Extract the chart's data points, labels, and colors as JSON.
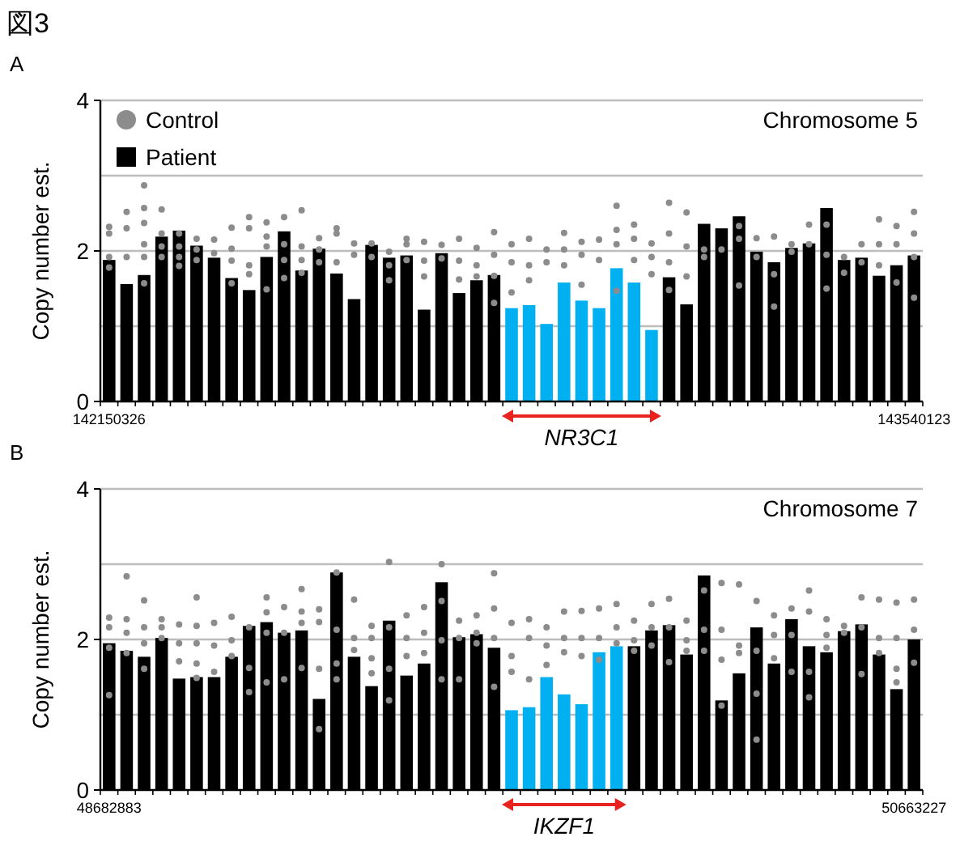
{
  "chart_data": [
    {
      "type": "bar",
      "title": "図3",
      "subtitle": "A",
      "ylabel": "Copy number est.",
      "annotations": [
        "Chromosome 5",
        "NR3C1"
      ],
      "categories": [
        "142150326",
        null,
        null,
        null,
        null,
        null,
        null,
        null,
        null,
        null,
        null,
        null,
        null,
        null,
        null,
        null,
        null,
        null,
        null,
        null,
        null,
        null,
        null,
        null,
        null,
        null,
        null,
        null,
        null,
        null,
        null,
        null,
        null,
        null,
        null,
        null,
        null,
        null,
        null,
        null,
        null,
        null,
        null,
        null,
        null,
        null,
        "143540123"
      ],
      "ylim": [
        0,
        4
      ],
      "yticks": [
        0,
        2,
        4
      ],
      "grid": "y",
      "legend": "top left",
      "series": [
        {
          "name": "Control",
          "type": "scatter",
          "color": "#8c8c8c",
          "marker": "circle",
          "values": [
            2.32,
            2.52,
            2.87,
            2.55,
            2.23,
            2.16,
            2.15,
            2.31,
            2.45,
            2.38,
            2.45,
            2.54,
            2.17,
            2.3,
            2.1,
            2.1,
            1.99,
            2.16,
            2.12,
            2.08,
            2.16,
            2.04,
            2.25,
            2.09,
            2.16,
            2.02,
            2.24,
            2.12,
            2.15,
            2.6,
            2.35,
            2.1,
            2.64,
            2.51,
            2.02,
            2.02,
            2.33,
            2.17,
            2.19,
            2.09,
            2.35,
            2.35,
            1.92,
            2.09,
            2.42,
            2.33,
            2.52
          ]
        },
        {
          "type": "scatter",
          "color": "#8c8c8c",
          "marker": "circle",
          "values": [
            2.23,
            2.3,
            2.57,
            2.23,
            2.06,
            2.02,
            1.97,
            2.03,
            2.3,
            2.19,
            2.09,
            2.06,
            2.02,
            2.23,
            1.95,
            1.92,
            1.81,
            2.09,
            1.87,
            1.9,
            1.87,
            1.81,
            1.95,
            1.85,
            1.81,
            1.85,
            2.02,
            1.95,
            1.88,
            2.28,
            2.16,
            1.92,
            2.23,
            2.06,
            1.92,
            null,
            2.16,
            1.92,
            1.69,
            1.99,
            2.09,
            1.95,
            1.71,
            1.85,
            2.09,
            2.09,
            2.23
          ]
        },
        {
          "type": "scatter",
          "color": "#8c8c8c",
          "marker": "circle",
          "values": [
            1.92,
            1.92,
            2.37,
            2.06,
            1.92,
            1.88,
            null,
            1.87,
            1.81,
            2.06,
            1.88,
            1.88,
            1.85,
            1.85,
            null,
            null,
            1.61,
            1.88,
            1.66,
            null,
            1.62,
            1.66,
            1.67,
            1.45,
            1.61,
            null,
            1.81,
            1.55,
            null,
            2.09,
            1.88,
            1.69,
            1.85,
            1.66,
            null,
            null,
            1.54,
            null,
            1.26,
            null,
            null,
            1.5,
            null,
            null,
            1.81,
            1.58,
            1.92
          ]
        },
        {
          "type": "scatter",
          "color": "#8c8c8c",
          "marker": "circle",
          "values": [
            1.78,
            null,
            2.09,
            1.92,
            1.8,
            null,
            null,
            1.57,
            1.69,
            1.49,
            1.64,
            1.71,
            null,
            null,
            null,
            null,
            null,
            null,
            null,
            null,
            null,
            null,
            1.31,
            null,
            null,
            null,
            null,
            null,
            null,
            1.47,
            null,
            null,
            1.48,
            null,
            null,
            null,
            null,
            null,
            null,
            null,
            null,
            null,
            null,
            null,
            null,
            null,
            1.38
          ]
        },
        {
          "type": "scatter",
          "color": "#8c8c8c",
          "marker": "circle",
          "values": [
            null,
            null,
            1.92,
            null,
            null,
            null,
            null,
            null,
            null,
            null,
            null,
            null,
            null,
            null,
            null,
            null,
            null,
            null,
            null,
            null,
            null,
            null,
            null,
            null,
            null,
            null,
            null,
            null,
            null,
            null,
            null,
            null,
            null,
            null,
            null,
            null,
            null,
            null,
            null,
            null,
            null,
            null,
            null,
            null,
            null,
            null,
            null
          ]
        },
        {
          "type": "scatter",
          "color": "#8c8c8c",
          "marker": "circle",
          "values": [
            null,
            null,
            1.57,
            null,
            null,
            null,
            null,
            null,
            null,
            null,
            null,
            null,
            null,
            null,
            null,
            null,
            null,
            null,
            null,
            null,
            null,
            null,
            null,
            null,
            null,
            null,
            null,
            null,
            null,
            null,
            null,
            null,
            null,
            null,
            null,
            null,
            null,
            null,
            null,
            null,
            null,
            null,
            null,
            null,
            null,
            null,
            null
          ]
        },
        {
          "name": "Patient",
          "type": "bar",
          "color": "#000000",
          "colors": [
            "#000000",
            "#000000",
            "#000000",
            "#000000",
            "#000000",
            "#000000",
            "#000000",
            "#000000",
            "#000000",
            "#000000",
            "#000000",
            "#000000",
            "#000000",
            "#000000",
            "#000000",
            "#000000",
            "#000000",
            "#000000",
            "#000000",
            "#000000",
            "#000000",
            "#000000",
            "#000000",
            "#00b0f0",
            "#00b0f0",
            "#00b0f0",
            "#00b0f0",
            "#00b0f0",
            "#00b0f0",
            "#00b0f0",
            "#00b0f0",
            "#00b0f0",
            "#000000",
            "#000000",
            "#000000",
            "#000000",
            "#000000",
            "#000000",
            "#000000",
            "#000000",
            "#000000",
            "#000000",
            "#000000",
            "#000000",
            "#000000",
            "#000000",
            "#000000"
          ],
          "values": [
            1.88,
            1.56,
            1.68,
            2.19,
            2.27,
            2.07,
            1.91,
            1.64,
            1.48,
            1.92,
            2.26,
            1.74,
            2.03,
            1.7,
            1.36,
            2.08,
            1.91,
            1.94,
            1.22,
            1.97,
            1.44,
            1.61,
            1.68,
            1.24,
            1.28,
            1.03,
            1.58,
            1.34,
            1.24,
            1.77,
            1.58,
            0.95,
            1.65,
            1.29,
            2.36,
            2.3,
            2.46,
            1.99,
            1.85,
            2.04,
            2.1,
            2.57,
            1.88,
            1.91,
            1.67,
            1.81,
            1.94
          ]
        }
      ]
    },
    {
      "type": "bar",
      "subtitle": "B",
      "ylabel": "Copy number est.",
      "annotations": [
        "Chromosome 7",
        "IKZF1"
      ],
      "categories": [
        "48682883",
        null,
        null,
        null,
        null,
        null,
        null,
        null,
        null,
        null,
        null,
        null,
        null,
        null,
        null,
        null,
        null,
        null,
        null,
        null,
        null,
        null,
        null,
        null,
        null,
        null,
        null,
        null,
        null,
        null,
        null,
        null,
        null,
        null,
        null,
        null,
        null,
        null,
        null,
        null,
        null,
        null,
        null,
        null,
        null,
        null,
        "50663227"
      ],
      "ylim": [
        0,
        4
      ],
      "yticks": [
        0,
        2,
        4
      ],
      "grid": "y",
      "series": [
        {
          "type": "scatter",
          "color": "#8c8c8c",
          "marker": "circle",
          "values": [
            2.29,
            2.84,
            2.52,
            2.27,
            2.2,
            2.56,
            2.22,
            2.3,
            2.16,
            2.56,
            2.43,
            2.67,
            2.4,
            2.89,
            2.53,
            2.18,
            3.03,
            2.32,
            2.43,
            3.0,
            2.25,
            2.32,
            2.88,
            2.22,
            2.27,
            2.16,
            2.37,
            2.38,
            2.41,
            2.47,
            2.25,
            2.47,
            2.54,
            2.25,
            2.65,
            2.75,
            2.73,
            2.51,
            2.32,
            2.41,
            2.65,
            2.27,
            2.18,
            2.56,
            2.53,
            2.49,
            2.53
          ]
        },
        {
          "type": "scatter",
          "color": "#8c8c8c",
          "marker": "circle",
          "values": [
            2.16,
            2.27,
            2.16,
            2.16,
            1.95,
            2.18,
            1.92,
            1.99,
            1.62,
            2.36,
            2.09,
            2.37,
            2.23,
            2.13,
            2.02,
            2.02,
            2.16,
            2.02,
            2.09,
            2.51,
            2.02,
            2.09,
            2.41,
            1.78,
            2.02,
            1.92,
            2.02,
            2.02,
            2.02,
            2.16,
            1.99,
            2.16,
            2.16,
            1.99,
            2.13,
            2.13,
            1.92,
            1.85,
            2.06,
            2.06,
            2.37,
            2.06,
            2.09,
            2.16,
            2.02,
            2.02,
            2.13
          ]
        },
        {
          "type": "scatter",
          "color": "#8c8c8c",
          "marker": "circle",
          "values": [
            1.89,
            2.09,
            1.95,
            2.02,
            1.71,
            1.95,
            1.57,
            1.78,
            1.3,
            2.09,
            1.47,
            2.22,
            1.61,
            1.68,
            1.86,
            1.75,
            1.61,
            1.78,
            1.82,
            1.99,
            1.47,
            1.95,
            2.02,
            1.57,
            1.47,
            1.66,
            1.83,
            1.78,
            1.73,
            1.95,
            1.85,
            1.92,
            1.7,
            1.85,
            1.85,
            1.73,
            1.82,
            1.28,
            1.75,
            1.57,
            1.57,
            1.89,
            null,
            1.54,
            1.82,
            1.61,
            1.69
          ]
        },
        {
          "type": "scatter",
          "color": "#8c8c8c",
          "marker": "circle",
          "values": [
            1.26,
            1.82,
            1.61,
            null,
            null,
            1.68,
            null,
            null,
            null,
            1.43,
            null,
            1.62,
            0.81,
            1.47,
            null,
            1.55,
            1.19,
            null,
            null,
            1.47,
            null,
            null,
            1.37,
            null,
            null,
            null,
            null,
            null,
            null,
            null,
            null,
            null,
            null,
            null,
            null,
            1.12,
            null,
            0.67,
            null,
            null,
            1.23,
            null,
            null,
            null,
            null,
            1.43,
            null
          ]
        },
        {
          "type": "scatter",
          "color": "#8c8c8c",
          "marker": "circle",
          "values": [
            null,
            null,
            null,
            null,
            null,
            1.49,
            null,
            null,
            null,
            null,
            null,
            null,
            null,
            null,
            null,
            null,
            null,
            null,
            null,
            null,
            null,
            null,
            null,
            null,
            null,
            null,
            null,
            null,
            null,
            null,
            null,
            null,
            null,
            null,
            null,
            null,
            null,
            null,
            null,
            null,
            null,
            null,
            null,
            null,
            null,
            null,
            null
          ]
        },
        {
          "type": "bar",
          "color": "#000000",
          "colors": [
            "#000000",
            "#000000",
            "#000000",
            "#000000",
            "#000000",
            "#000000",
            "#000000",
            "#000000",
            "#000000",
            "#000000",
            "#000000",
            "#000000",
            "#000000",
            "#000000",
            "#000000",
            "#000000",
            "#000000",
            "#000000",
            "#000000",
            "#000000",
            "#000000",
            "#000000",
            "#000000",
            "#00b0f0",
            "#00b0f0",
            "#00b0f0",
            "#00b0f0",
            "#00b0f0",
            "#00b0f0",
            "#00b0f0",
            "#000000",
            "#000000",
            "#000000",
            "#000000",
            "#000000",
            "#000000",
            "#000000",
            "#000000",
            "#000000",
            "#000000",
            "#000000",
            "#000000",
            "#000000",
            "#000000",
            "#000000",
            "#000000",
            "#000000"
          ],
          "values": [
            1.95,
            1.85,
            1.77,
            2.02,
            1.48,
            1.5,
            1.5,
            1.77,
            2.18,
            2.23,
            2.09,
            2.12,
            1.21,
            2.89,
            1.77,
            1.38,
            2.25,
            1.52,
            1.68,
            2.76,
            2.03,
            2.07,
            1.89,
            1.06,
            1.1,
            1.5,
            1.27,
            1.14,
            1.83,
            1.91,
            1.91,
            2.12,
            2.19,
            1.8,
            2.85,
            1.19,
            1.55,
            2.16,
            1.68,
            2.27,
            1.91,
            1.83,
            2.11,
            2.2,
            1.8,
            1.34,
            2.0
          ]
        }
      ]
    }
  ]
}
